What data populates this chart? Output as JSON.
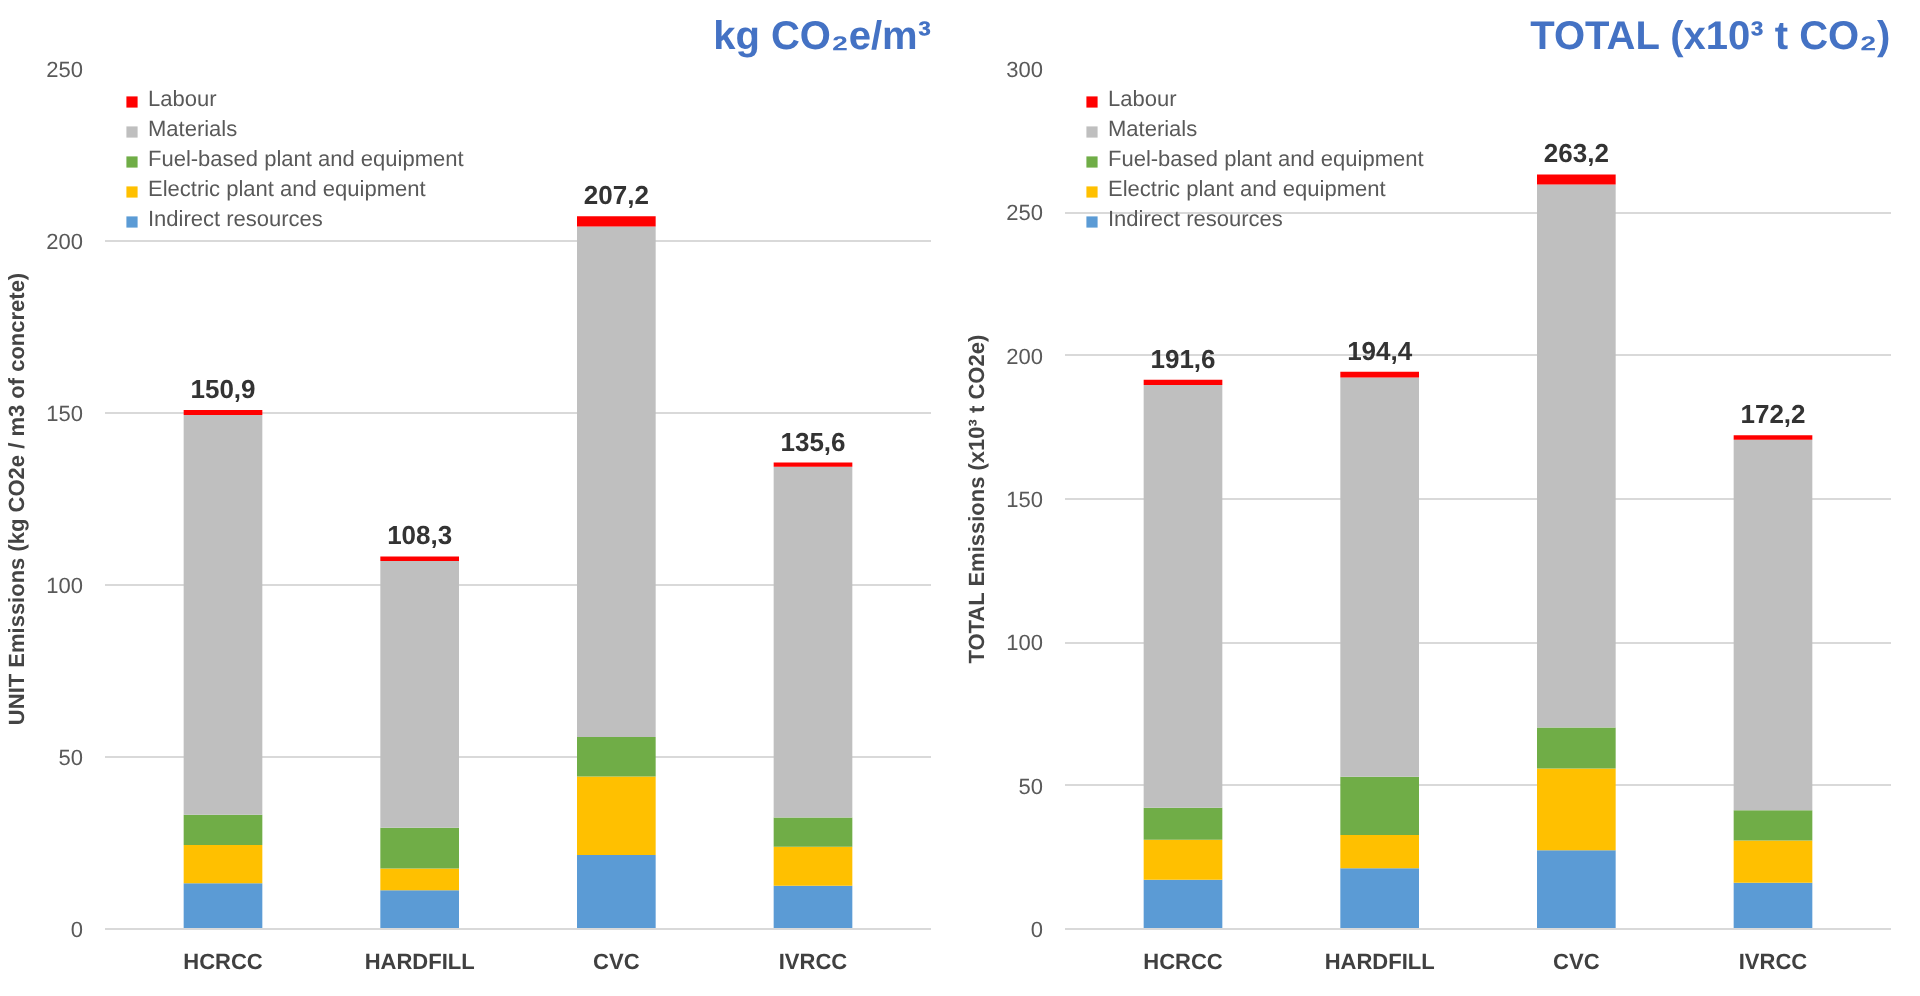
{
  "chart_data": [
    {
      "type": "bar",
      "title": "kg CO₂e/m³",
      "ylabel": "UNIT Emissions (kg CO2e / m3 of concrete)",
      "categories": [
        "HCRCC",
        "HARDFILL",
        "CVC",
        "IVRCC"
      ],
      "stacked": true,
      "ylim": [
        0,
        250
      ],
      "yticks": [
        0,
        50,
        100,
        150,
        200,
        250
      ],
      "grid": "y",
      "legend": "top left",
      "series": [
        {
          "name": "Indirect resources",
          "color": "#5b9bd5",
          "values": [
            13.3,
            11.3,
            21.5,
            12.6
          ]
        },
        {
          "name": "Electric plant and equipment",
          "color": "#ffc000",
          "values": [
            11.1,
            6.3,
            22.8,
            11.3
          ]
        },
        {
          "name": "Fuel-based plant and equipment",
          "color": "#70ad47",
          "values": [
            8.8,
            11.8,
            11.5,
            8.5
          ]
        },
        {
          "name": "Materials",
          "color": "#bfbfbf",
          "values": [
            116.2,
            77.6,
            148.4,
            102.0
          ]
        },
        {
          "name": "Labour",
          "color": "#ff0000",
          "values": [
            1.5,
            1.3,
            3.0,
            1.2
          ]
        }
      ],
      "totals": [
        "150,9",
        "108,3",
        "207,2",
        "135,6"
      ]
    },
    {
      "type": "bar",
      "title": "TOTAL (x10³ t CO₂)",
      "ylabel": "TOTAL Emissions (x10³ t CO2e)",
      "categories": [
        "HCRCC",
        "HARDFILL",
        "CVC",
        "IVRCC"
      ],
      "stacked": true,
      "ylim": [
        0,
        300
      ],
      "yticks": [
        0,
        50,
        100,
        150,
        200,
        250,
        300
      ],
      "grid": "y",
      "legend": "top left",
      "series": [
        {
          "name": "Indirect resources",
          "color": "#5b9bd5",
          "values": [
            17.2,
            21.2,
            27.5,
            16.1
          ]
        },
        {
          "name": "Electric plant and equipment",
          "color": "#ffc000",
          "values": [
            13.9,
            11.6,
            28.5,
            14.8
          ]
        },
        {
          "name": "Fuel-based plant and equipment",
          "color": "#70ad47",
          "values": [
            11.2,
            20.3,
            14.3,
            10.5
          ]
        },
        {
          "name": "Materials",
          "color": "#bfbfbf",
          "values": [
            147.5,
            139.3,
            189.4,
            129.3
          ]
        },
        {
          "name": "Labour",
          "color": "#ff0000",
          "values": [
            1.8,
            2.0,
            3.5,
            1.5
          ]
        }
      ],
      "totals": [
        "191,6",
        "194,4",
        "263,2",
        "172,2"
      ]
    }
  ]
}
